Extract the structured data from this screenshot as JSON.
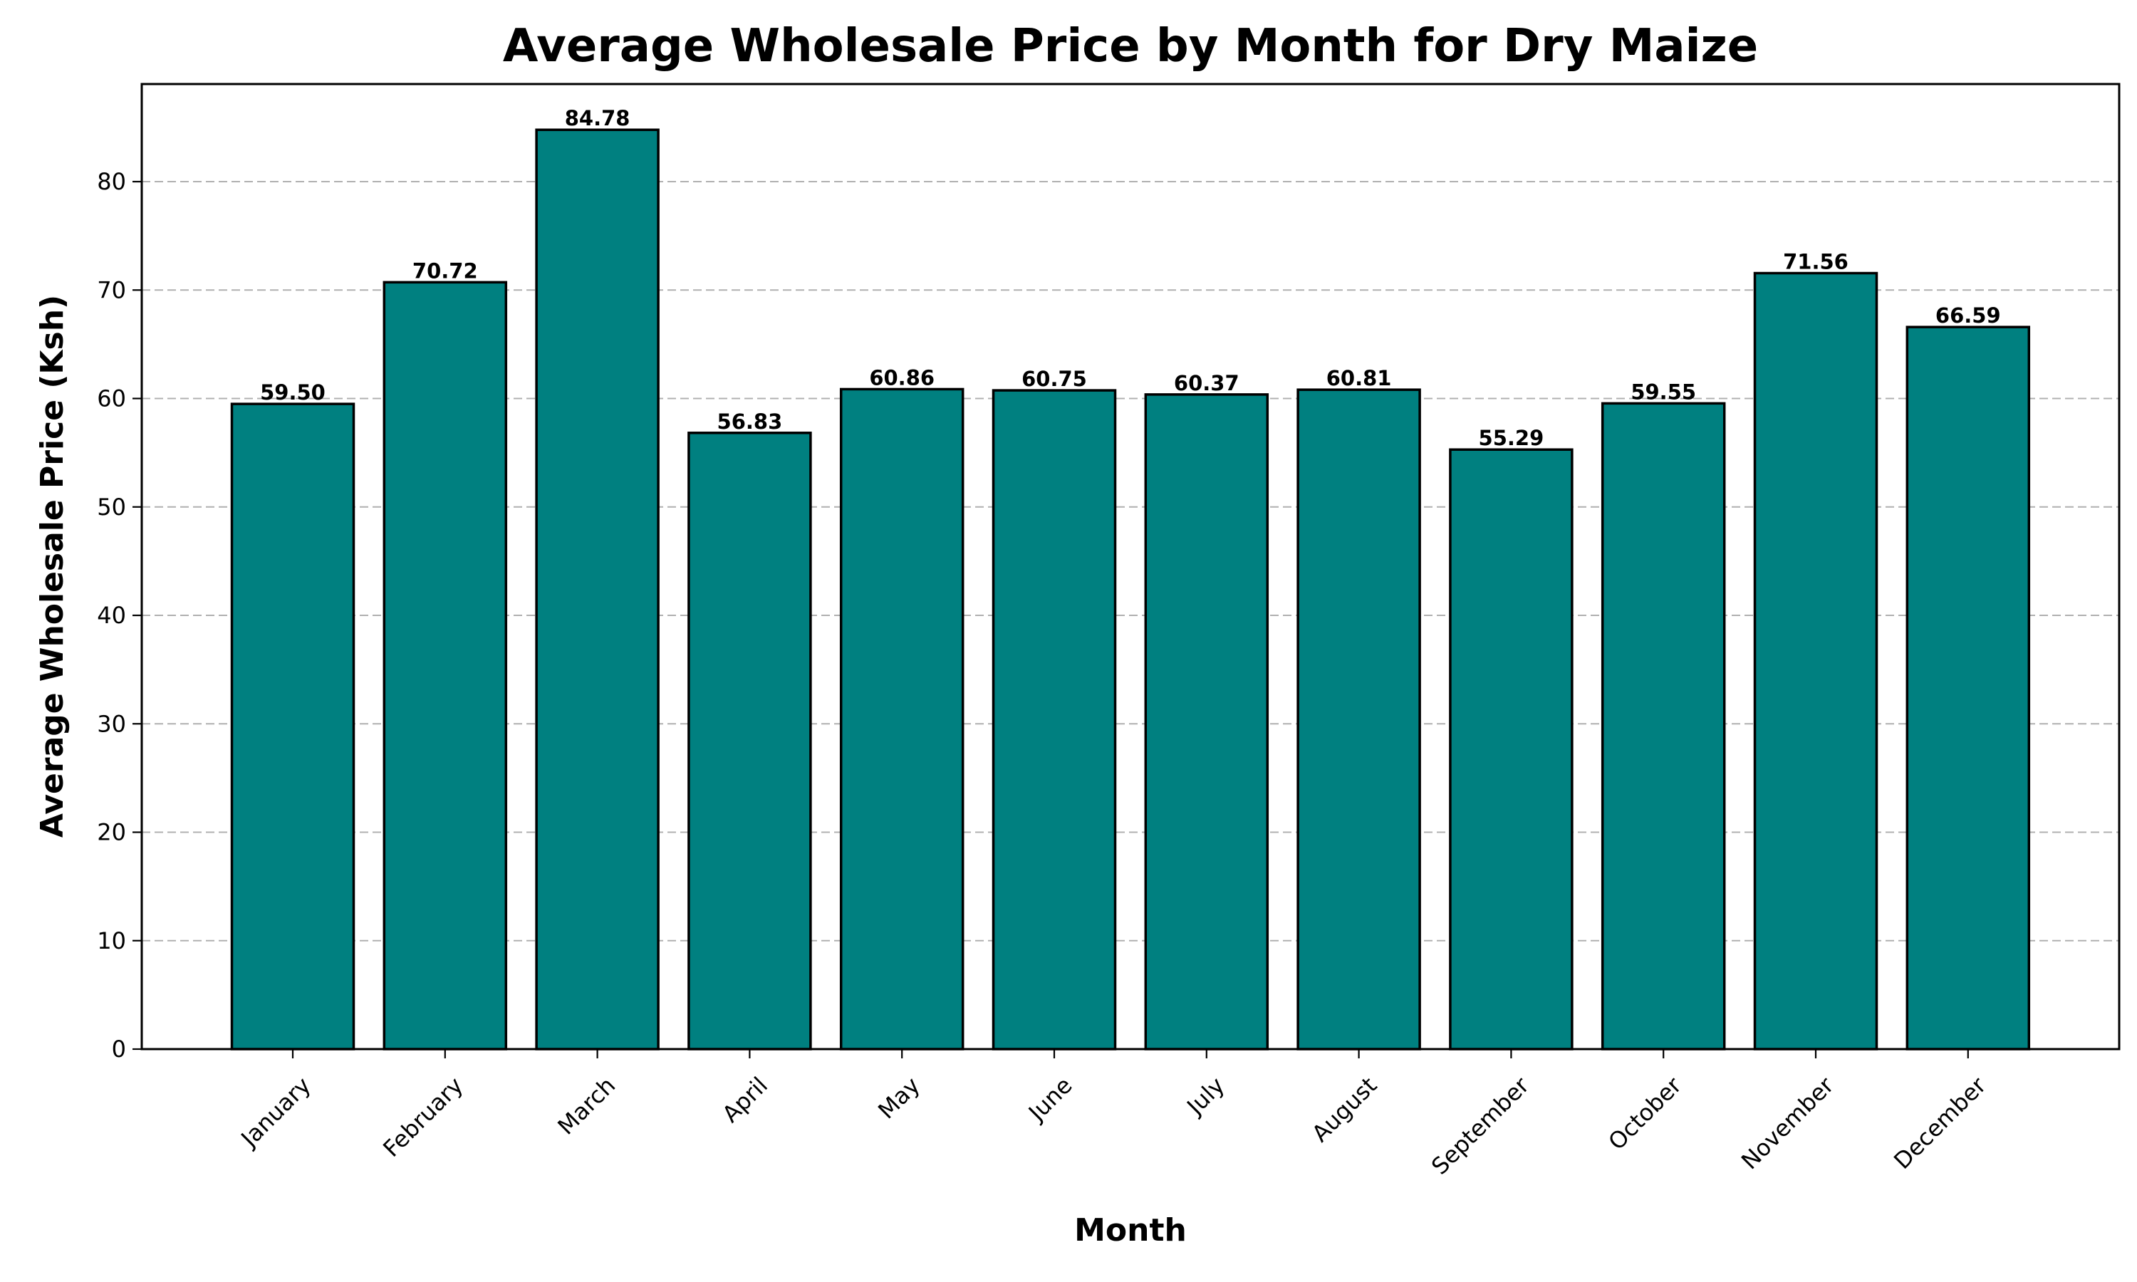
{
  "chart_data": {
    "type": "bar",
    "title": "Average Wholesale Price by Month for Dry Maize",
    "xlabel": "Month",
    "ylabel": "Average Wholesale Price (Ksh)",
    "categories": [
      "January",
      "February",
      "March",
      "April",
      "May",
      "June",
      "July",
      "August",
      "September",
      "October",
      "November",
      "December"
    ],
    "values": [
      59.5,
      70.72,
      84.78,
      56.83,
      60.86,
      60.75,
      60.37,
      60.81,
      55.29,
      59.55,
      71.56,
      66.59
    ],
    "value_labels": [
      "59.50",
      "70.72",
      "84.78",
      "56.83",
      "60.86",
      "60.75",
      "60.37",
      "60.81",
      "55.29",
      "59.55",
      "71.56",
      "66.59"
    ],
    "ylim": [
      0,
      89
    ],
    "yticks": [
      0,
      10,
      20,
      30,
      40,
      50,
      60,
      70,
      80
    ],
    "grid": "y-axis dashed",
    "bar_color": "#008080",
    "edge_color": "#000000"
  }
}
